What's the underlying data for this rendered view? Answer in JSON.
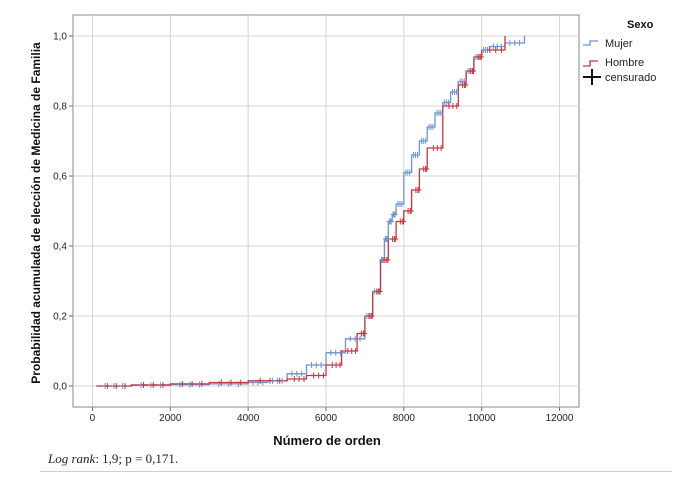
{
  "chart_data": {
    "type": "line",
    "xlabel": "Número de orden",
    "ylabel": "Probabilidad acumulada de elección de Medicina de Familia",
    "xlim": [
      -500,
      12500
    ],
    "ylim": [
      -0.06,
      1.06
    ],
    "x_ticks": [
      0,
      2000,
      4000,
      6000,
      8000,
      10000,
      12000
    ],
    "x_tick_labels": [
      "0",
      "2000",
      "4000",
      "6000",
      "8000",
      "10000",
      "12000"
    ],
    "y_ticks": [
      0,
      0.2,
      0.4,
      0.6,
      0.8,
      1.0
    ],
    "y_tick_labels": [
      "0,0",
      "0,2",
      "0,4",
      "0,6",
      "0,8",
      "1,0"
    ],
    "grid": true,
    "legend": {
      "title": "Sexo",
      "placement": "right",
      "entries": [
        {
          "label": "Mujer",
          "color": "#6f94d2"
        },
        {
          "label": "Hombre",
          "color": "#c8363f"
        },
        {
          "label": "censurado",
          "color": "#111111"
        }
      ]
    },
    "series": [
      {
        "name": "Mujer",
        "color": "#6f94d2",
        "step": true,
        "x": [
          100,
          1000,
          2000,
          3000,
          4000,
          4500,
          5000,
          5500,
          6000,
          6500,
          7000,
          7200,
          7400,
          7500,
          7600,
          7700,
          7800,
          8000,
          8200,
          8400,
          8600,
          8800,
          9000,
          9200,
          9400,
          9600,
          9800,
          10000,
          10200,
          10600,
          11100
        ],
        "y": [
          0.0,
          0.002,
          0.004,
          0.006,
          0.01,
          0.015,
          0.035,
          0.06,
          0.095,
          0.135,
          0.2,
          0.27,
          0.36,
          0.42,
          0.47,
          0.49,
          0.52,
          0.61,
          0.66,
          0.7,
          0.74,
          0.78,
          0.81,
          0.84,
          0.87,
          0.9,
          0.94,
          0.96,
          0.97,
          0.98,
          1.0
        ]
      },
      {
        "name": "Hombre",
        "color": "#c8363f",
        "step": true,
        "x": [
          100,
          1000,
          2000,
          3000,
          4000,
          5000,
          5500,
          6000,
          6400,
          6800,
          7000,
          7200,
          7400,
          7600,
          7800,
          8000,
          8200,
          8400,
          8600,
          9000,
          9400,
          9600,
          9800,
          10000,
          10600
        ],
        "y": [
          0.0,
          0.003,
          0.006,
          0.01,
          0.015,
          0.02,
          0.03,
          0.06,
          0.1,
          0.15,
          0.2,
          0.27,
          0.36,
          0.42,
          0.47,
          0.5,
          0.56,
          0.62,
          0.68,
          0.8,
          0.86,
          0.9,
          0.94,
          0.96,
          1.0
        ]
      }
    ]
  },
  "caption": {
    "italic_part": "Log rank",
    "rest": ": 1,9; p = 0,171."
  }
}
